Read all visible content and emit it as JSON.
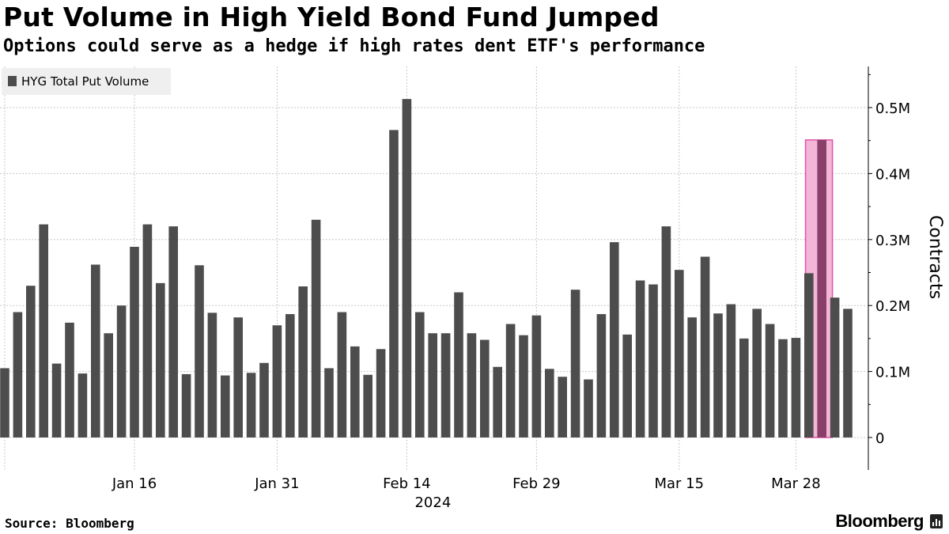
{
  "header": {
    "title": "Put Volume in High Yield Bond Fund Jumped",
    "subtitle": "Options could serve as a hedge if high rates dent ETF's performance"
  },
  "footer": {
    "source": "Source: Bloomberg",
    "brand": "Bloomberg"
  },
  "chart_data": {
    "type": "bar",
    "title": "Put Volume in High Yield Bond Fund Jumped",
    "legend": {
      "label": "HYG Total Put Volume",
      "position": "top-left"
    },
    "ylabel": "Contracts",
    "ylim": [
      0,
      0.55
    ],
    "yticks": [
      0,
      0.1,
      0.2,
      0.3,
      0.4,
      0.5
    ],
    "ytick_labels": [
      "0",
      "0.1M",
      "0.2M",
      "0.3M",
      "0.4M",
      "0.5M"
    ],
    "xtick_labels": [
      "Jan 16",
      "Jan 31",
      "Feb 14",
      "Feb 29",
      "Mar 15",
      "Mar 28"
    ],
    "xtick_index": [
      10,
      21,
      31,
      41,
      52,
      61
    ],
    "year_label": "2024",
    "year_label_index": 33.5,
    "highlight_index": 62,
    "colors": {
      "bar": "#4d4d4d",
      "highlight_fill": "#f4b6d6",
      "highlight_stroke": "#e052a8",
      "grid": "#c8c8c8"
    },
    "series": [
      {
        "name": "HYG Total Put Volume",
        "unit": "M contracts",
        "values": [
          0.105,
          0.19,
          0.23,
          0.323,
          0.112,
          0.174,
          0.097,
          0.262,
          0.158,
          0.2,
          0.289,
          0.323,
          0.234,
          0.32,
          0.096,
          0.261,
          0.189,
          0.094,
          0.182,
          0.098,
          0.113,
          0.17,
          0.187,
          0.229,
          0.33,
          0.105,
          0.19,
          0.138,
          0.095,
          0.134,
          0.466,
          0.513,
          0.19,
          0.158,
          0.158,
          0.22,
          0.158,
          0.148,
          0.107,
          0.172,
          0.155,
          0.185,
          0.104,
          0.092,
          0.224,
          0.088,
          0.187,
          0.296,
          0.156,
          0.238,
          0.232,
          0.32,
          0.254,
          0.182,
          0.274,
          0.188,
          0.202,
          0.15,
          0.195,
          0.172,
          0.149,
          0.151,
          0.249,
          0.451,
          0.212,
          0.195
        ]
      }
    ]
  }
}
